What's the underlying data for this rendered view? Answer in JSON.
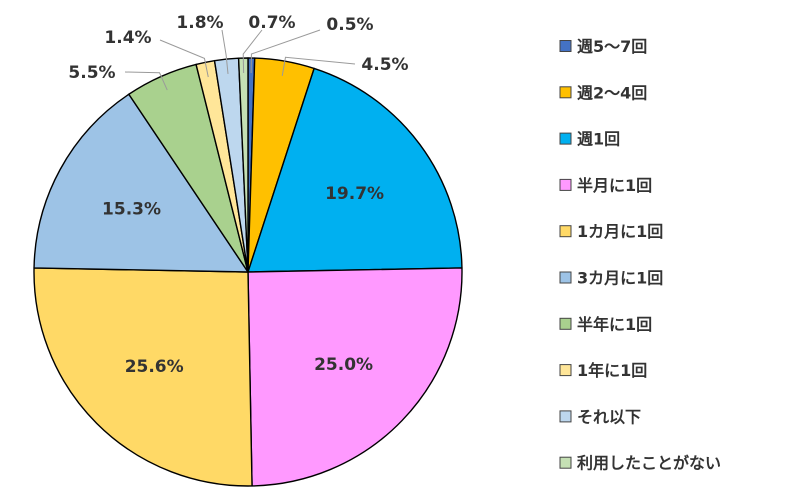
{
  "chart_data": {
    "type": "pie",
    "title": "",
    "legend_position": "right",
    "start_angle": "12 o'clock, clockwise",
    "slices": [
      {
        "label": "週5～7回",
        "value": 0.5,
        "display": "0.5%",
        "color": "#4472C4"
      },
      {
        "label": "週2～4回",
        "value": 4.5,
        "display": "4.5%",
        "color": "#FFC000"
      },
      {
        "label": "週1回",
        "value": 19.7,
        "display": "19.7%",
        "color": "#00B0F0"
      },
      {
        "label": "半月に1回",
        "value": 25.0,
        "display": "25.0%",
        "color": "#FF99FF"
      },
      {
        "label": "1カ月に1回",
        "value": 25.6,
        "display": "25.6%",
        "color": "#FFD966"
      },
      {
        "label": "3カ月に1回",
        "value": 15.3,
        "display": "15.3%",
        "color": "#9DC3E6"
      },
      {
        "label": "半年に1回",
        "value": 5.5,
        "display": "5.5%",
        "color": "#A9D18E"
      },
      {
        "label": "1年に1回",
        "value": 1.4,
        "display": "1.4%",
        "color": "#FFE699"
      },
      {
        "label": "それ以下",
        "value": 1.8,
        "display": "1.8%",
        "color": "#BDD7EE"
      },
      {
        "label": "利用したことがない",
        "value": 0.7,
        "display": "0.7%",
        "color": "#C5E0B4"
      }
    ]
  }
}
